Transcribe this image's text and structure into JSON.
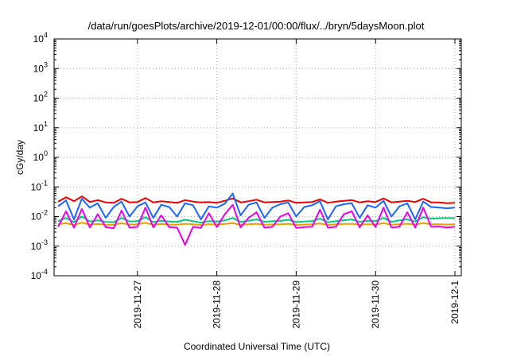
{
  "chart_data": {
    "type": "line",
    "title": "/data/run/goesPlots/archive/2019-12-01/00:00/flux/../bryn/5daysMoon.plot",
    "xlabel": "Coordinated Universal Time (UTC)",
    "ylabel": "cGy/day",
    "yscale": "log",
    "ylim": [
      0.0001,
      10000
    ],
    "xlim_days": [
      -0.05,
      5.08
    ],
    "grid": true,
    "x_ticks": [
      {
        "label": "2019-11-27",
        "day": 1
      },
      {
        "label": "2019-11-28",
        "day": 2
      },
      {
        "label": "2019-11-29",
        "day": 3
      },
      {
        "label": "2019-11-30",
        "day": 4
      },
      {
        "label": "2019-12-1",
        "day": 5
      }
    ],
    "y_ticks": [
      {
        "base": "10",
        "exp": "-4",
        "value": 0.0001
      },
      {
        "base": "10",
        "exp": "-3",
        "value": 0.001
      },
      {
        "base": "10",
        "exp": "-2",
        "value": 0.01
      },
      {
        "base": "10",
        "exp": "-1",
        "value": 0.1
      },
      {
        "base": "10",
        "exp": "0",
        "value": 1
      },
      {
        "base": "10",
        "exp": "1",
        "value": 10
      },
      {
        "base": "10",
        "exp": "2",
        "value": 100
      },
      {
        "base": "10",
        "exp": "3",
        "value": 1000
      },
      {
        "base": "10",
        "exp": "4",
        "value": 10000
      }
    ],
    "series": [
      {
        "color": "#ee0000",
        "x_days": [
          0.0,
          0.1,
          0.2,
          0.3,
          0.4,
          0.5,
          0.6,
          0.7,
          0.8,
          0.9,
          1.0,
          1.1,
          1.2,
          1.3,
          1.4,
          1.5,
          1.6,
          1.7,
          1.8,
          1.9,
          2.0,
          2.1,
          2.2,
          2.3,
          2.4,
          2.5,
          2.6,
          2.7,
          2.8,
          2.9,
          3.0,
          3.1,
          3.2,
          3.3,
          3.4,
          3.5,
          3.6,
          3.7,
          3.8,
          3.9,
          4.0,
          4.1,
          4.2,
          4.3,
          4.4,
          4.5,
          4.6,
          4.7,
          4.8,
          4.9,
          5.0
        ],
        "values": [
          0.032,
          0.045,
          0.033,
          0.048,
          0.031,
          0.036,
          0.03,
          0.029,
          0.04,
          0.03,
          0.031,
          0.042,
          0.03,
          0.033,
          0.031,
          0.029,
          0.036,
          0.032,
          0.03,
          0.031,
          0.029,
          0.034,
          0.041,
          0.03,
          0.033,
          0.037,
          0.03,
          0.031,
          0.032,
          0.035,
          0.029,
          0.03,
          0.031,
          0.038,
          0.029,
          0.032,
          0.034,
          0.036,
          0.03,
          0.033,
          0.031,
          0.041,
          0.03,
          0.032,
          0.034,
          0.031,
          0.04,
          0.03,
          0.03,
          0.028,
          0.029
        ]
      },
      {
        "color": "#1a66ff",
        "x_days": [
          0.0,
          0.1,
          0.2,
          0.3,
          0.4,
          0.5,
          0.6,
          0.7,
          0.8,
          0.9,
          1.0,
          1.1,
          1.2,
          1.3,
          1.4,
          1.5,
          1.6,
          1.7,
          1.8,
          1.9,
          2.0,
          2.1,
          2.2,
          2.3,
          2.4,
          2.5,
          2.6,
          2.7,
          2.8,
          2.9,
          3.0,
          3.1,
          3.2,
          3.3,
          3.4,
          3.5,
          3.6,
          3.7,
          3.8,
          3.9,
          4.0,
          4.1,
          4.2,
          4.3,
          4.4,
          4.5,
          4.6,
          4.7,
          4.8,
          4.9,
          5.0
        ],
        "values": [
          0.022,
          0.035,
          0.008,
          0.04,
          0.02,
          0.028,
          0.009,
          0.021,
          0.032,
          0.01,
          0.022,
          0.03,
          0.009,
          0.025,
          0.021,
          0.01,
          0.028,
          0.024,
          0.008,
          0.022,
          0.02,
          0.027,
          0.06,
          0.011,
          0.025,
          0.03,
          0.009,
          0.02,
          0.026,
          0.03,
          0.01,
          0.021,
          0.024,
          0.033,
          0.008,
          0.022,
          0.026,
          0.028,
          0.009,
          0.024,
          0.02,
          0.034,
          0.01,
          0.022,
          0.028,
          0.008,
          0.032,
          0.021,
          0.02,
          0.019,
          0.02
        ]
      },
      {
        "color": "#00c878",
        "x_days": [
          0.0,
          0.1,
          0.2,
          0.3,
          0.4,
          0.5,
          0.6,
          0.7,
          0.8,
          0.9,
          1.0,
          1.1,
          1.2,
          1.3,
          1.4,
          1.5,
          1.6,
          1.7,
          1.8,
          1.9,
          2.0,
          2.1,
          2.2,
          2.3,
          2.4,
          2.5,
          2.6,
          2.7,
          2.8,
          2.9,
          3.0,
          3.1,
          3.2,
          3.3,
          3.4,
          3.5,
          3.6,
          3.7,
          3.8,
          3.9,
          4.0,
          4.1,
          4.2,
          4.3,
          4.4,
          4.5,
          4.6,
          4.7,
          4.8,
          4.9,
          5.0
        ],
        "values": [
          0.007,
          0.009,
          0.0065,
          0.01,
          0.0068,
          0.0075,
          0.0066,
          0.0064,
          0.009,
          0.0068,
          0.007,
          0.0095,
          0.0065,
          0.0072,
          0.0068,
          0.0066,
          0.0078,
          0.007,
          0.0062,
          0.007,
          0.0068,
          0.0074,
          0.009,
          0.0066,
          0.0072,
          0.008,
          0.0066,
          0.007,
          0.0071,
          0.0078,
          0.0065,
          0.0068,
          0.007,
          0.0085,
          0.0064,
          0.007,
          0.0075,
          0.008,
          0.0066,
          0.0072,
          0.007,
          0.009,
          0.0066,
          0.0075,
          0.008,
          0.0068,
          0.0095,
          0.0085,
          0.0088,
          0.009,
          0.0088
        ]
      },
      {
        "color": "#e8a000",
        "x_days": [
          0.0,
          0.1,
          0.2,
          0.3,
          0.4,
          0.5,
          0.6,
          0.7,
          0.8,
          0.9,
          1.0,
          1.1,
          1.2,
          1.3,
          1.4,
          1.5,
          1.6,
          1.7,
          1.8,
          1.9,
          2.0,
          2.1,
          2.2,
          2.3,
          2.4,
          2.5,
          2.6,
          2.7,
          2.8,
          2.9,
          3.0,
          3.1,
          3.2,
          3.3,
          3.4,
          3.5,
          3.6,
          3.7,
          3.8,
          3.9,
          4.0,
          4.1,
          4.2,
          4.3,
          4.4,
          4.5,
          4.6,
          4.7,
          4.8,
          4.9,
          5.0
        ],
        "values": [
          0.0055,
          0.006,
          0.0052,
          0.0062,
          0.0054,
          0.0056,
          0.0053,
          0.0052,
          0.006,
          0.0054,
          0.0055,
          0.0061,
          0.0053,
          0.0056,
          0.0054,
          0.0053,
          0.0057,
          0.0055,
          0.0052,
          0.0055,
          0.0054,
          0.0056,
          0.006,
          0.0053,
          0.0055,
          0.0057,
          0.0053,
          0.0054,
          0.0055,
          0.0057,
          0.0052,
          0.0054,
          0.0055,
          0.0058,
          0.0052,
          0.0055,
          0.0056,
          0.0057,
          0.0053,
          0.0055,
          0.0054,
          0.006,
          0.0053,
          0.0055,
          0.0057,
          0.0054,
          0.006,
          0.0055,
          0.0055,
          0.0054,
          0.0055
        ]
      },
      {
        "color": "#ee00ee",
        "x_days": [
          0.0,
          0.1,
          0.2,
          0.3,
          0.4,
          0.5,
          0.6,
          0.7,
          0.8,
          0.9,
          1.0,
          1.1,
          1.2,
          1.3,
          1.4,
          1.5,
          1.6,
          1.7,
          1.8,
          1.9,
          2.0,
          2.1,
          2.2,
          2.3,
          2.4,
          2.5,
          2.6,
          2.7,
          2.8,
          2.9,
          3.0,
          3.1,
          3.2,
          3.3,
          3.4,
          3.5,
          3.6,
          3.7,
          3.8,
          3.9,
          4.0,
          4.1,
          4.2,
          4.3,
          4.4,
          4.5,
          4.6,
          4.7,
          4.8,
          4.9,
          5.0
        ],
        "values": [
          0.0045,
          0.015,
          0.0042,
          0.018,
          0.0043,
          0.012,
          0.0044,
          0.004,
          0.016,
          0.0042,
          0.0045,
          0.02,
          0.0043,
          0.011,
          0.0044,
          0.0042,
          0.0011,
          0.0045,
          0.0041,
          0.013,
          0.0044,
          0.012,
          0.025,
          0.0043,
          0.009,
          0.014,
          0.0042,
          0.0045,
          0.01,
          0.013,
          0.0041,
          0.0044,
          0.0045,
          0.017,
          0.0042,
          0.0045,
          0.012,
          0.015,
          0.0043,
          0.011,
          0.0044,
          0.02,
          0.0043,
          0.0045,
          0.014,
          0.0042,
          0.02,
          0.0045,
          0.0046,
          0.0043,
          0.0045
        ]
      }
    ]
  }
}
